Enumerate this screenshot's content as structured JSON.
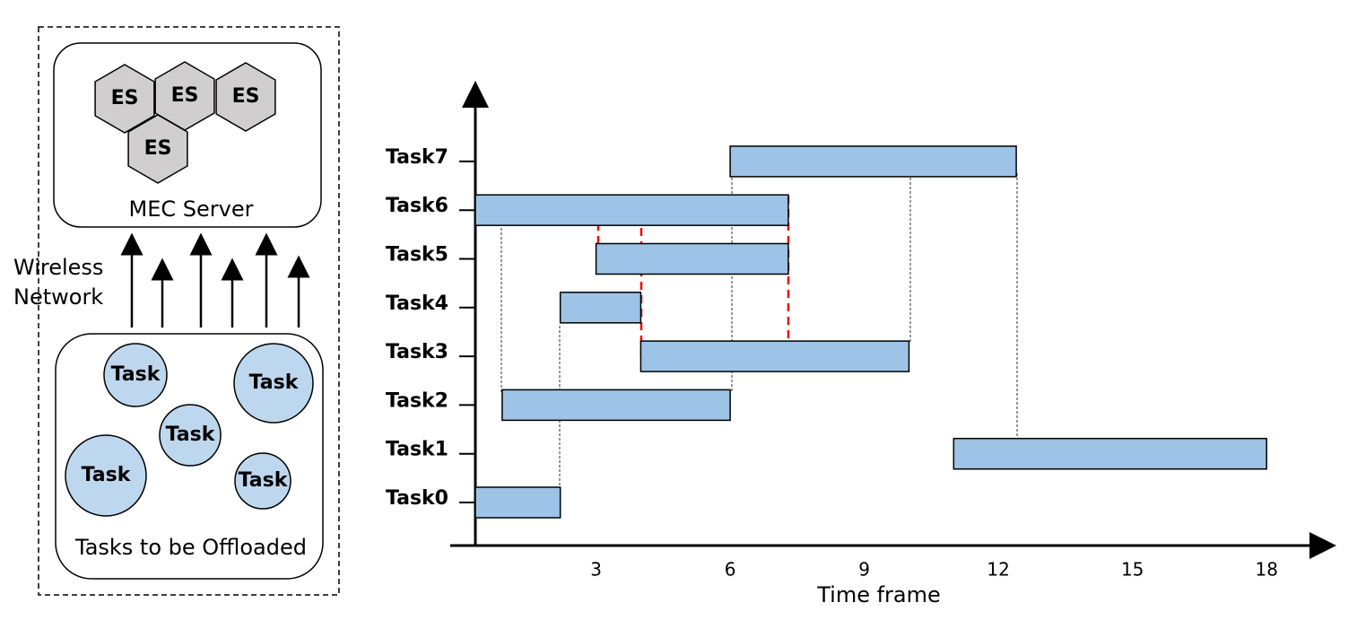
{
  "diagram": {
    "server_label": "MEC Server",
    "es_labels": [
      "ES",
      "ES",
      "ES",
      "ES"
    ],
    "network_label": [
      "Wireless",
      "Network"
    ],
    "task_labels": [
      "Task",
      "Task",
      "Task",
      "Task",
      "Task"
    ],
    "tasks_label": "Tasks to be Offloaded"
  },
  "chart_data": {
    "type": "gantt",
    "x_label": "Time frame",
    "categories": [
      "Task0",
      "Task1",
      "Task2",
      "Task3",
      "Task4",
      "Task5",
      "Task6",
      "Task7"
    ],
    "starts": [
      0.3,
      11.0,
      0.9,
      4.0,
      2.2,
      3.0,
      0.3,
      6.0
    ],
    "ends": [
      2.2,
      18.0,
      6.0,
      10.0,
      4.0,
      7.3,
      7.3,
      12.4
    ],
    "color": "#9dc3e6",
    "xlim": [
      0.3,
      19.3
    ],
    "xticks": [
      3,
      6,
      9,
      12,
      15,
      18
    ]
  }
}
